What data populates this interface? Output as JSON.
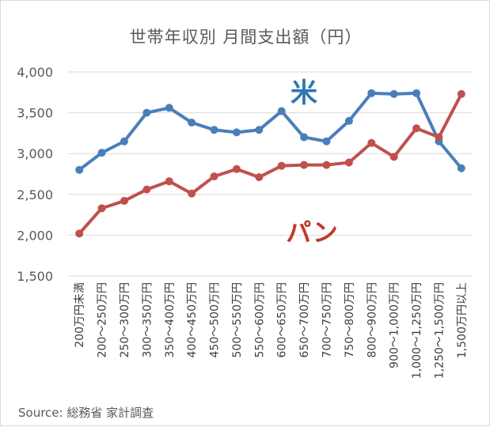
{
  "chart_data": {
    "type": "line",
    "title": "世帯年収別 月間支出額（円）",
    "categories": [
      "200万円未満",
      "200～250万円",
      "250～300万円",
      "300～350万円",
      "350～400万円",
      "400～450万円",
      "450～500万円",
      "500～550万円",
      "550～600万円",
      "600～650万円",
      "650～700万円",
      "700～750万円",
      "750～800万円",
      "800～900万円",
      "900～1,000万円",
      "1,000～1,250万円",
      "1,250～1,500万円",
      "1,500万円以上"
    ],
    "series": [
      {
        "name": "米",
        "color": "#4a7ebb",
        "values": [
          2800,
          3010,
          3150,
          3500,
          3560,
          3380,
          3290,
          3260,
          3290,
          3520,
          3200,
          3150,
          3400,
          3740,
          3730,
          3740,
          3150,
          2820
        ]
      },
      {
        "name": "パン",
        "color": "#c0504d",
        "values": [
          2020,
          2330,
          2420,
          2560,
          2660,
          2510,
          2720,
          2810,
          2710,
          2850,
          2860,
          2860,
          2890,
          3130,
          2960,
          3310,
          3200,
          3730
        ]
      }
    ],
    "yticks": [
      "4,000",
      "3,500",
      "3,000",
      "2,500",
      "2,000",
      "1,500"
    ],
    "ylim": [
      1500,
      4000
    ],
    "grid": true
  },
  "source": "Source: 総務省 家計調査"
}
